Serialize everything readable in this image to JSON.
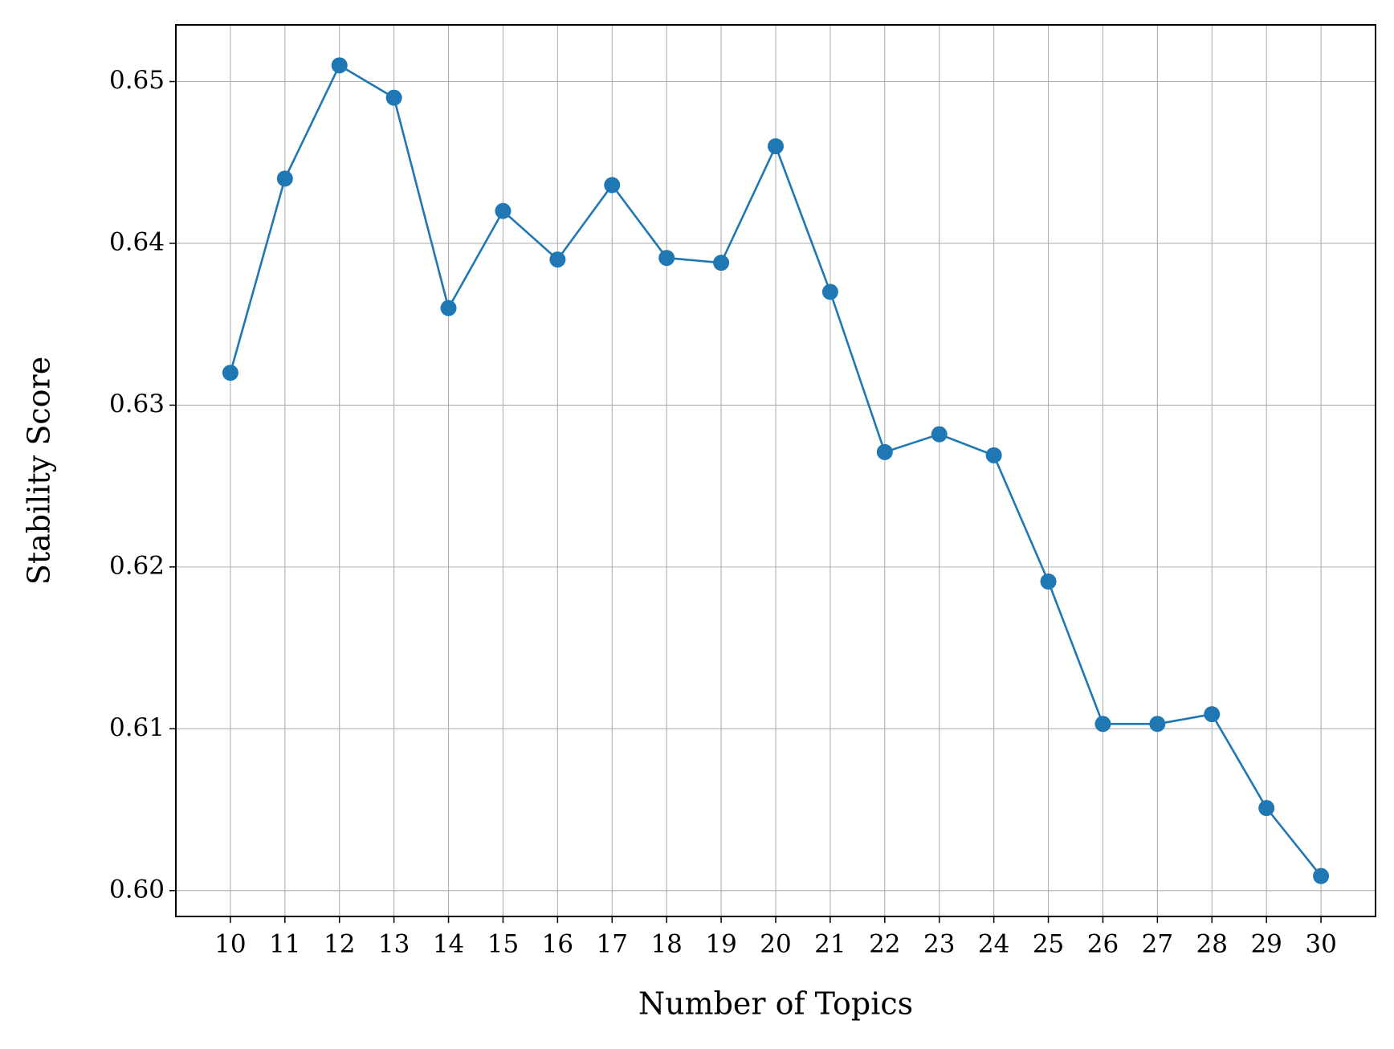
{
  "chart_data": {
    "type": "line",
    "xlabel": "Number of Topics",
    "ylabel": "Stability Score",
    "x": [
      10,
      11,
      12,
      13,
      14,
      15,
      16,
      17,
      18,
      19,
      20,
      21,
      22,
      23,
      24,
      25,
      26,
      27,
      28,
      29,
      30
    ],
    "values": [
      0.632,
      0.644,
      0.651,
      0.649,
      0.636,
      0.642,
      0.639,
      0.6436,
      0.6391,
      0.6388,
      0.646,
      0.637,
      0.6271,
      0.6282,
      0.6269,
      0.6191,
      0.6103,
      0.6103,
      0.6109,
      0.6051,
      0.6009
    ],
    "color": "#1f77b4",
    "xlim": [
      9,
      31
    ],
    "xticks": [
      10,
      11,
      12,
      13,
      14,
      15,
      16,
      17,
      18,
      19,
      20,
      21,
      22,
      23,
      24,
      25,
      26,
      27,
      28,
      29,
      30
    ],
    "ylim": [
      0.5984,
      0.6535
    ],
    "yticks": [
      {
        "value": 0.6,
        "label": "0.60"
      },
      0.61,
      0.62,
      0.63,
      0.64,
      0.65
    ],
    "grid": true
  }
}
